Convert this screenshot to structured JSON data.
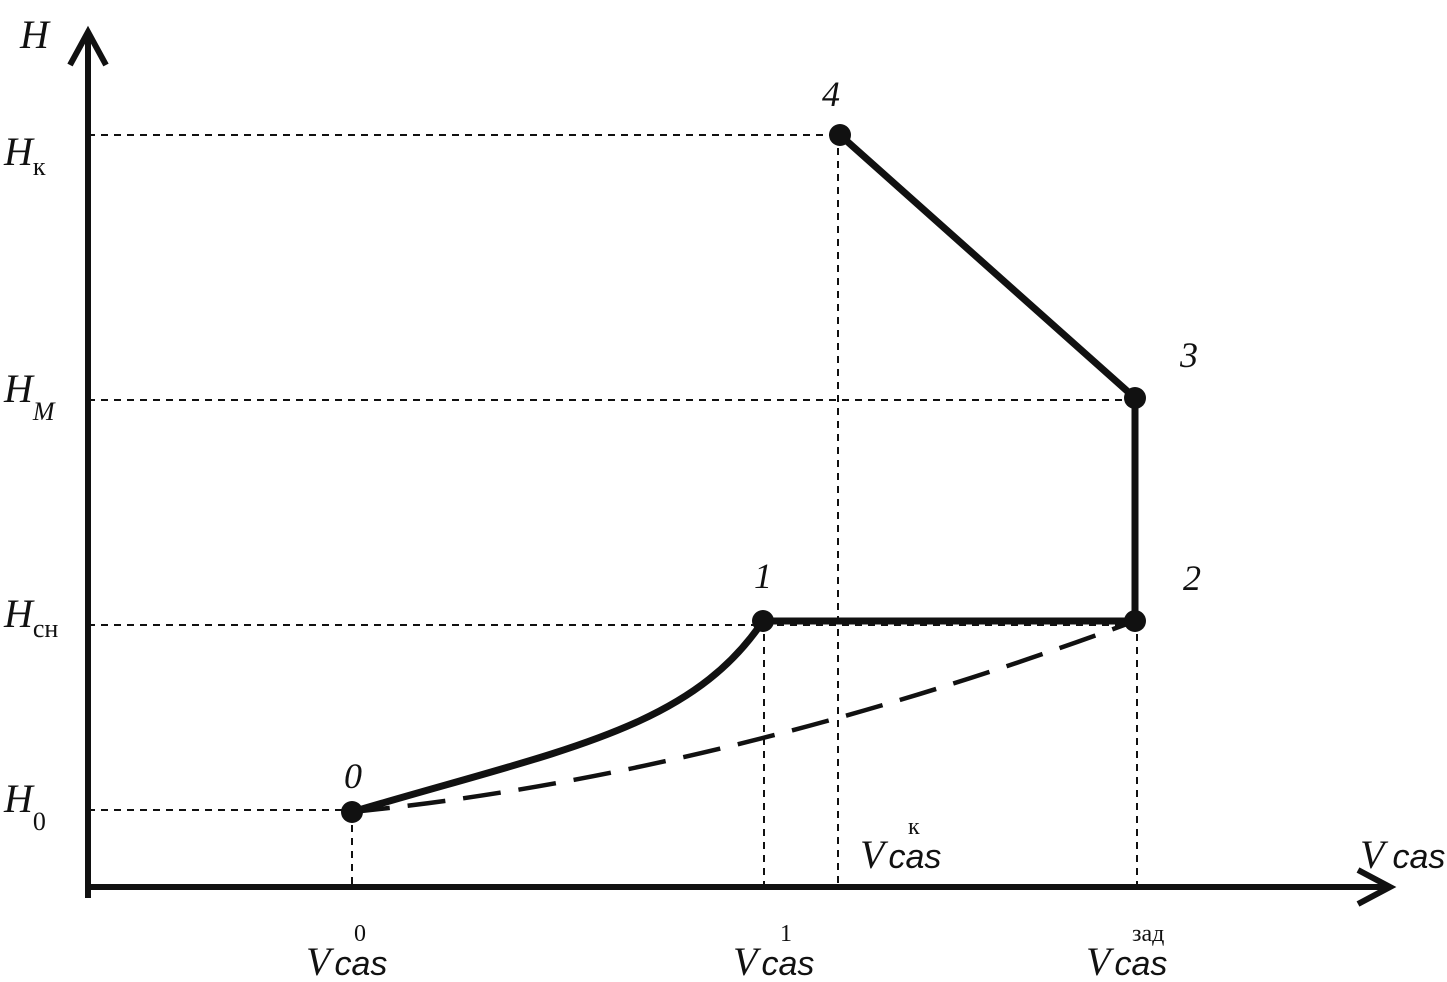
{
  "axes": {
    "y_label": "H",
    "x_label": {
      "main": "V",
      "sub": "cas"
    }
  },
  "y_levels": [
    {
      "main": "H",
      "sub": "к"
    },
    {
      "main": "H",
      "sub": "M"
    },
    {
      "main": "H",
      "sub": "сн"
    },
    {
      "main": "H",
      "sub": "0"
    }
  ],
  "x_levels": [
    {
      "main": "V",
      "sub": "cas",
      "sup": "0"
    },
    {
      "main": "V",
      "sub": "cas",
      "sup": "1"
    },
    {
      "main": "V",
      "sub": "cas",
      "sup": "к"
    },
    {
      "main": "V",
      "sub": "cas",
      "sup": "зад"
    }
  ],
  "points": [
    {
      "label": "0"
    },
    {
      "label": "1"
    },
    {
      "label": "2"
    },
    {
      "label": "3"
    },
    {
      "label": "4"
    }
  ]
}
